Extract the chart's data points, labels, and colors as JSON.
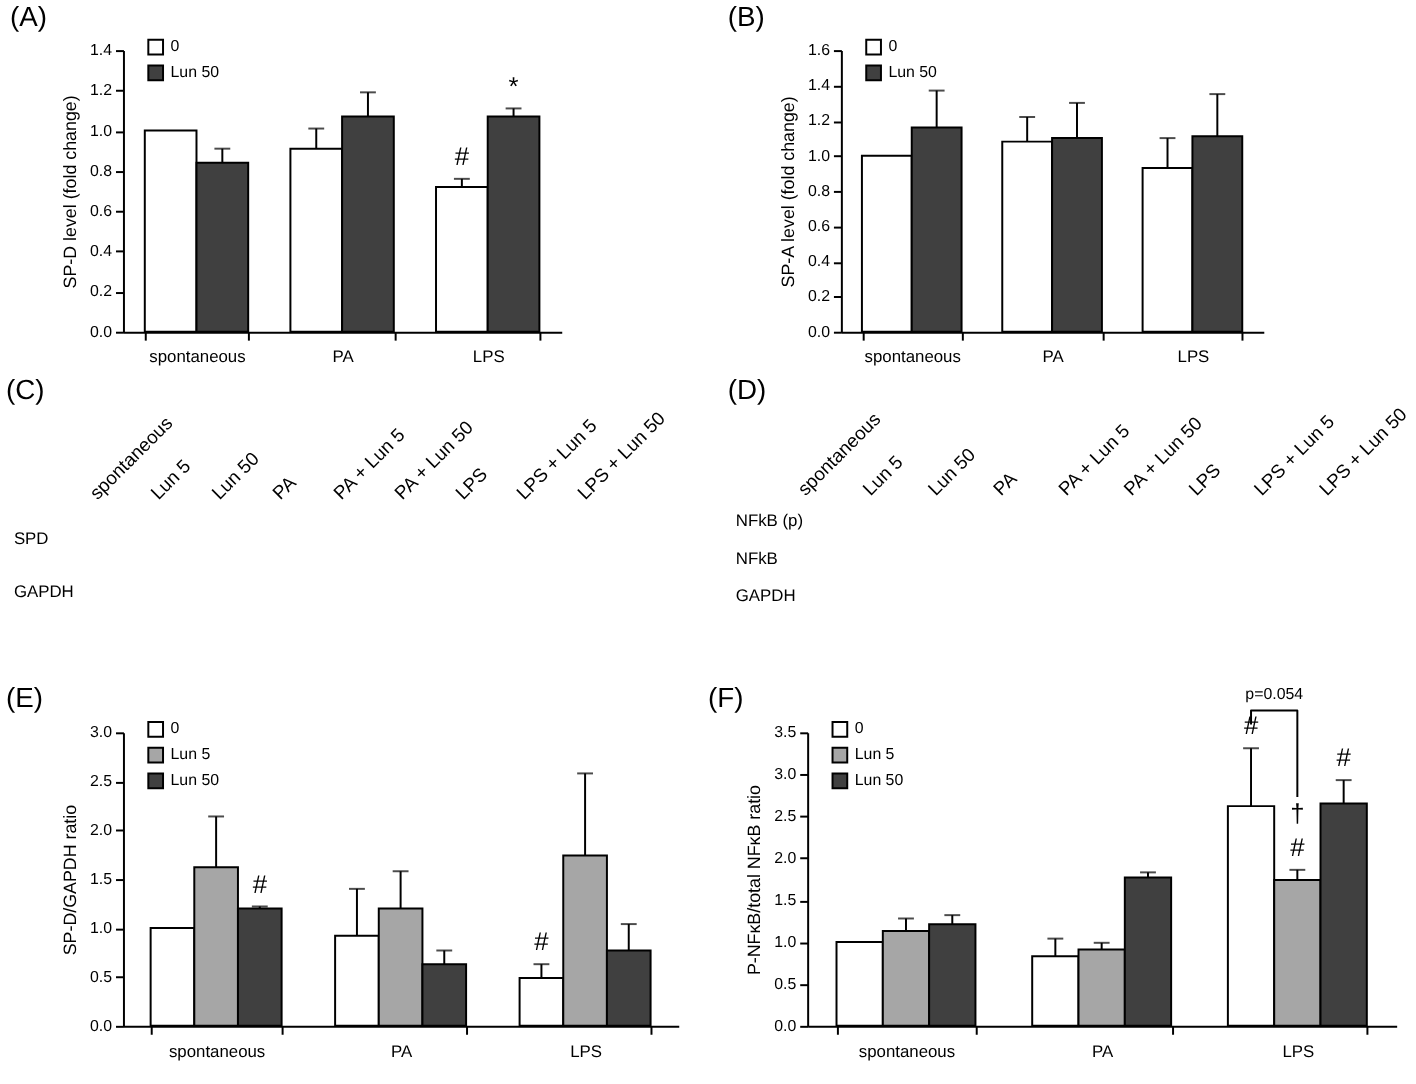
{
  "chart_data": [
    {
      "type": "bar",
      "title": "(A)",
      "ylabel": "SP-D level (fold change)",
      "categories": [
        "spontaneous",
        "PA",
        "LPS"
      ],
      "series": [
        {
          "name": "0",
          "color": "#ffffff",
          "values": [
            1.0,
            0.91,
            0.72
          ],
          "errors": [
            null,
            0.1,
            0.04
          ]
        },
        {
          "name": "Lun 50",
          "color": "#404040",
          "values": [
            0.84,
            1.07,
            1.07
          ],
          "errors": [
            0.07,
            0.12,
            0.04
          ]
        }
      ],
      "ylim": [
        0,
        1.4
      ],
      "yticks": [
        {
          "value": 0,
          "label": "0.0"
        },
        0.2,
        0.4,
        0.6,
        0.8,
        {
          "value": 1,
          "label": "1.0"
        },
        1.2,
        1.4
      ],
      "legend": "top left",
      "annotations": [
        "#",
        "*"
      ]
    },
    {
      "type": "bar",
      "title": "(B)",
      "ylabel": "SP-A level (fold change)",
      "categories": [
        "spontaneous",
        "PA",
        "LPS"
      ],
      "series": [
        {
          "name": "0",
          "color": "#ffffff",
          "values": [
            1.0,
            1.08,
            0.93
          ],
          "errors": [
            null,
            0.14,
            0.17
          ]
        },
        {
          "name": "Lun 50",
          "color": "#404040",
          "values": [
            1.16,
            1.1,
            1.11
          ],
          "errors": [
            0.21,
            0.2,
            0.24
          ]
        }
      ],
      "ylim": [
        0,
        1.6
      ],
      "yticks": [
        {
          "value": 0,
          "label": "0.0"
        },
        0.2,
        0.4,
        0.6,
        0.8,
        {
          "value": 1,
          "label": "1.0"
        },
        1.2,
        1.4,
        1.6
      ],
      "legend": "top left"
    },
    {
      "type": "other",
      "title": "(C)",
      "categories": [
        "spontaneous",
        "Lun 5",
        "Lun 50",
        "PA",
        "PA + Lun 5",
        "PA + Lun 50",
        "LPS",
        "LPS + Lun 5",
        "LPS + Lun 50"
      ],
      "y_categories": [
        "SPD",
        "GAPDH"
      ]
    },
    {
      "type": "other",
      "title": "(D)",
      "categories": [
        "spontaneous",
        "Lun 5",
        "Lun 50",
        "PA",
        "PA + Lun 5",
        "PA + Lun 50",
        "LPS",
        "LPS + Lun 5",
        "LPS + Lun 50"
      ],
      "y_categories": [
        "NFkB (p)",
        "NFkB",
        "GAPDH"
      ]
    },
    {
      "type": "bar",
      "title": "(E)",
      "ylabel": "SP-D/GAPDH ratio",
      "categories": [
        "spontaneous",
        "PA",
        "LPS"
      ],
      "series": [
        {
          "name": "0",
          "color": "#ffffff",
          "values": [
            1.0,
            0.92,
            0.49
          ],
          "errors": [
            null,
            0.48,
            0.14
          ]
        },
        {
          "name": "Lun 5",
          "color": "#a6a6a6",
          "values": [
            1.62,
            1.2,
            1.74
          ],
          "errors": [
            0.52,
            0.38,
            0.84
          ]
        },
        {
          "name": "Lun 50",
          "color": "#404040",
          "values": [
            1.2,
            0.63,
            0.77
          ],
          "errors": [
            0.02,
            0.14,
            0.27
          ]
        }
      ],
      "ylim": [
        0,
        3
      ],
      "yticks": [
        {
          "value": 0,
          "label": "0.0"
        },
        0.5,
        {
          "value": 1,
          "label": "1.0"
        },
        1.5,
        {
          "value": 2,
          "label": "2.0"
        },
        2.5,
        {
          "value": 3,
          "label": "3.0"
        }
      ],
      "legend": "top left",
      "annotations": [
        "#",
        "#"
      ]
    },
    {
      "type": "bar",
      "title": "(F)",
      "ylabel": "P-NFκB/total NFκB ratio",
      "categories": [
        "spontaneous",
        "PA",
        "LPS"
      ],
      "series": [
        {
          "name": "0",
          "color": "#ffffff",
          "values": [
            1.0,
            0.83,
            2.62
          ],
          "errors": [
            null,
            0.21,
            0.69
          ]
        },
        {
          "name": "Lun 5",
          "color": "#a6a6a6",
          "values": [
            1.13,
            0.91,
            1.74
          ],
          "errors": [
            0.15,
            0.08,
            0.12
          ]
        },
        {
          "name": "Lun 50",
          "color": "#404040",
          "values": [
            1.21,
            1.77,
            2.65
          ],
          "errors": [
            0.11,
            0.06,
            0.28
          ]
        }
      ],
      "ylim": [
        0,
        3.5
      ],
      "yticks": [
        {
          "value": 0,
          "label": "0.0"
        },
        0.5,
        {
          "value": 1,
          "label": "1.0"
        },
        1.5,
        {
          "value": 2,
          "label": "2.0"
        },
        2.5,
        {
          "value": 3,
          "label": "3.0"
        },
        3.5
      ],
      "legend": "top left",
      "annotations": [
        "#",
        "#",
        "†",
        "#",
        "p=0.054"
      ]
    }
  ]
}
